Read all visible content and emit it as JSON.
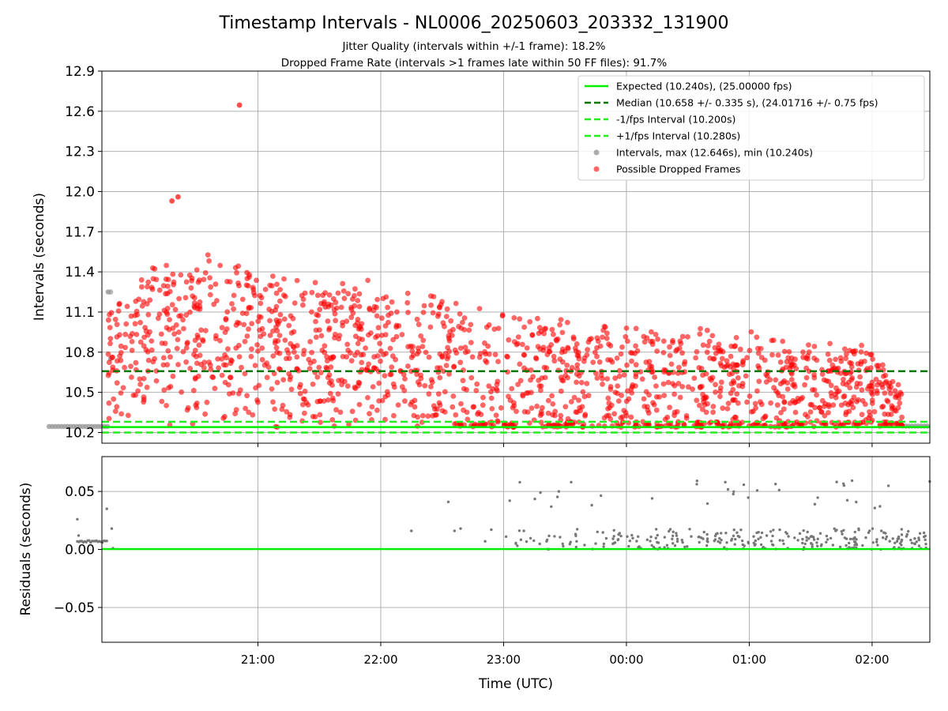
{
  "figure": {
    "title": "Timestamp Intervals - NL0006_20250603_203332_131900",
    "subtitle_1": "Jitter Quality (intervals within +/-1 frame): 18.2%",
    "subtitle_2": "Dropped Frame Rate (intervals >1 frames late within 50 FF files): 91.7%",
    "xlabel": "Time (UTC)"
  },
  "colors": {
    "expected": "#00ee00",
    "median": "#007700",
    "interval_band": "#22ee22",
    "intervals": "#999999",
    "dropped": "#ff0000",
    "residuals": "#777777",
    "grid": "#b0b0b0"
  },
  "chart_data": [
    {
      "type": "scatter",
      "name": "intervals-panel",
      "ylabel": "Intervals (seconds)",
      "x_unit": "hours since 20:00 UTC on day of start",
      "x_range": [
        20.27,
        26.47
      ],
      "xticks": [
        1,
        2,
        3,
        4,
        5,
        6
      ],
      "xtick_labels": [
        "21:00",
        "22:00",
        "23:00",
        "00:00",
        "01:00",
        "02:00"
      ],
      "ylim": [
        10.12,
        12.9
      ],
      "yticks": [
        10.2,
        10.5,
        10.8,
        11.1,
        11.4,
        11.7,
        12.0,
        12.3,
        12.6,
        12.9
      ],
      "ytick_labels": [
        "10.2",
        "10.5",
        "10.8",
        "11.1",
        "11.4",
        "11.7",
        "12.0",
        "12.3",
        "12.6",
        "12.9"
      ],
      "grid": true,
      "legend_position": "top-right",
      "lines": [
        {
          "name": "Expected (10.240s), (25.00000 fps)",
          "y": 10.24,
          "style": "solid",
          "color": "#00ee00"
        },
        {
          "name": "Median (10.658 +/- 0.335 s), (24.01716 +/- 0.75 fps)",
          "y": 10.658,
          "style": "dashed",
          "color": "#007700"
        },
        {
          "name": "-1/fps Interval (10.200s)",
          "y": 10.2,
          "style": "dashed",
          "color": "#22ee22"
        },
        {
          "name": "+1/fps Interval (10.280s)",
          "y": 10.28,
          "style": "dashed",
          "color": "#22ee22"
        }
      ],
      "scatter_series": [
        {
          "name": "Intervals, max (12.646s), min (10.240s)",
          "color": "#999999",
          "max": 12.646,
          "min": 10.24
        },
        {
          "name": "Possible Dropped Frames",
          "color": "#ff0000"
        }
      ],
      "annotated_points": [
        {
          "x": 0.85,
          "y": 12.646
        },
        {
          "x": 0.35,
          "y": 11.96
        },
        {
          "x": 0.3,
          "y": 11.93
        },
        {
          "x": -0.2,
          "y": 11.25
        }
      ],
      "envelope": {
        "description": "dense dropped-frame cloud",
        "x_start": -0.22,
        "x_end": 6.25,
        "upper_trend": [
          [
            -0.2,
            11.1
          ],
          [
            0.3,
            11.5
          ],
          [
            1.0,
            11.4
          ],
          [
            2.0,
            11.25
          ],
          [
            3.0,
            11.05
          ],
          [
            4.0,
            10.95
          ],
          [
            5.0,
            10.9
          ],
          [
            6.0,
            10.8
          ],
          [
            6.2,
            10.5
          ]
        ],
        "lower_bound": 10.24
      }
    },
    {
      "type": "scatter",
      "name": "residuals-panel",
      "ylabel": "Residuals (seconds)",
      "x_range": [
        20.27,
        26.47
      ],
      "xticks": [
        1,
        2,
        3,
        4,
        5,
        6
      ],
      "xtick_labels": [
        "21:00",
        "22:00",
        "23:00",
        "00:00",
        "01:00",
        "02:00"
      ],
      "ylim": [
        -0.08,
        0.08
      ],
      "yticks": [
        -0.05,
        0.0,
        0.05
      ],
      "ytick_labels": [
        "−0.05",
        "0.00",
        "0.05"
      ],
      "grid": true,
      "zero_line": {
        "y": 0.0,
        "color": "#00ee00"
      },
      "series": [
        {
          "name": "residuals",
          "color": "#777777"
        }
      ]
    }
  ]
}
